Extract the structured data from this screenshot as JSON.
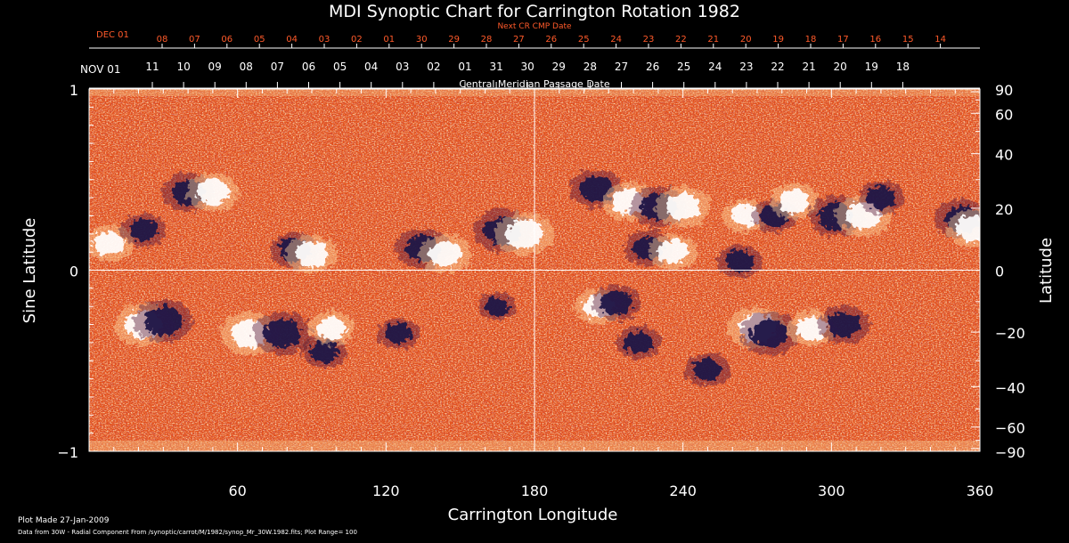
{
  "chart_data": {
    "type": "heatmap",
    "title": "MDI Synoptic Chart for Carrington Rotation 1982",
    "xlabel": "Carrington Longitude",
    "ylabel_left": "Sine Latitude",
    "ylabel_right": "Latitude",
    "xlim": [
      0,
      360
    ],
    "ylim": [
      -1,
      1
    ],
    "x_ticks": [
      60,
      120,
      180,
      240,
      300,
      360
    ],
    "y_ticks_left": [
      {
        "value": 1,
        "label": "1"
      },
      {
        "value": 0,
        "label": "0"
      },
      {
        "value": -1,
        "label": "−1"
      }
    ],
    "y_ticks_right": [
      {
        "value": 90,
        "label": "90"
      },
      {
        "value": 60,
        "label": "60"
      },
      {
        "value": 40,
        "label": "40"
      },
      {
        "value": 20,
        "label": "20"
      },
      {
        "value": 0,
        "label": "0"
      },
      {
        "value": -20,
        "label": "−20"
      },
      {
        "value": -40,
        "label": "−40"
      },
      {
        "value": -60,
        "label": "−60"
      },
      {
        "value": -90,
        "label": "−90"
      }
    ],
    "cmp_axis": {
      "title": "Central Meridian Passage Date",
      "month_label": "NOV 01",
      "dates": [
        "11",
        "10",
        "09",
        "08",
        "07",
        "06",
        "05",
        "04",
        "03",
        "02",
        "01",
        "31",
        "30",
        "29",
        "28",
        "27",
        "26",
        "25",
        "24",
        "23",
        "22",
        "21",
        "20",
        "19",
        "18"
      ]
    },
    "next_cmp_axis": {
      "title": "Next CR CMP Date",
      "month_label": "DEC 01",
      "dates": [
        "08",
        "07",
        "06",
        "05",
        "04",
        "03",
        "02",
        "01",
        "30",
        "29",
        "28",
        "27",
        "26",
        "25",
        "24",
        "23",
        "22",
        "21",
        "20",
        "19",
        "18",
        "17",
        "16",
        "15",
        "14"
      ]
    },
    "crosshair": {
      "longitude": 180,
      "sine_latitude": 0
    },
    "plot_range": 100,
    "colors": {
      "background_field": "#e8531a",
      "positive_polarity": "#ffffff",
      "negative_polarity": "#1c1245",
      "next_cmp_text": "#ff5a2a",
      "axes": "#ffffff"
    },
    "active_regions": [
      {
        "longitude": 8,
        "sine_latitude": 0.15,
        "polarity": "positive",
        "strength": 0.6
      },
      {
        "longitude": 22,
        "sine_latitude": 0.22,
        "polarity": "negative",
        "strength": 0.5
      },
      {
        "longitude": 40,
        "sine_latitude": 0.43,
        "polarity": "negative",
        "strength": 0.7
      },
      {
        "longitude": 50,
        "sine_latitude": 0.43,
        "polarity": "positive",
        "strength": 0.7
      },
      {
        "longitude": 83,
        "sine_latitude": 0.11,
        "polarity": "negative",
        "strength": 0.6
      },
      {
        "longitude": 90,
        "sine_latitude": 0.09,
        "polarity": "positive",
        "strength": 0.7
      },
      {
        "longitude": 135,
        "sine_latitude": 0.12,
        "polarity": "negative",
        "strength": 0.8
      },
      {
        "longitude": 144,
        "sine_latitude": 0.09,
        "polarity": "positive",
        "strength": 0.7
      },
      {
        "longitude": 167,
        "sine_latitude": 0.22,
        "polarity": "negative",
        "strength": 0.9
      },
      {
        "longitude": 176,
        "sine_latitude": 0.2,
        "polarity": "positive",
        "strength": 0.9
      },
      {
        "longitude": 205,
        "sine_latitude": 0.45,
        "polarity": "negative",
        "strength": 0.7
      },
      {
        "longitude": 218,
        "sine_latitude": 0.38,
        "polarity": "positive",
        "strength": 0.7
      },
      {
        "longitude": 230,
        "sine_latitude": 0.35,
        "polarity": "negative",
        "strength": 0.8
      },
      {
        "longitude": 240,
        "sine_latitude": 0.35,
        "polarity": "positive",
        "strength": 0.8
      },
      {
        "longitude": 226,
        "sine_latitude": 0.12,
        "polarity": "negative",
        "strength": 0.6
      },
      {
        "longitude": 236,
        "sine_latitude": 0.1,
        "polarity": "positive",
        "strength": 0.6
      },
      {
        "longitude": 265,
        "sine_latitude": 0.3,
        "polarity": "positive",
        "strength": 0.5
      },
      {
        "longitude": 277,
        "sine_latitude": 0.3,
        "polarity": "negative",
        "strength": 0.5
      },
      {
        "longitude": 285,
        "sine_latitude": 0.38,
        "polarity": "positive",
        "strength": 0.6
      },
      {
        "longitude": 302,
        "sine_latitude": 0.3,
        "polarity": "negative",
        "strength": 0.8
      },
      {
        "longitude": 313,
        "sine_latitude": 0.3,
        "polarity": "positive",
        "strength": 0.8
      },
      {
        "longitude": 320,
        "sine_latitude": 0.4,
        "polarity": "negative",
        "strength": 0.5
      },
      {
        "longitude": 353,
        "sine_latitude": 0.28,
        "polarity": "negative",
        "strength": 0.8
      },
      {
        "longitude": 357,
        "sine_latitude": 0.23,
        "polarity": "positive",
        "strength": 0.7
      },
      {
        "longitude": 263,
        "sine_latitude": 0.05,
        "polarity": "negative",
        "strength": 0.5
      },
      {
        "longitude": 22,
        "sine_latitude": -0.3,
        "polarity": "positive",
        "strength": 0.9
      },
      {
        "longitude": 30,
        "sine_latitude": -0.28,
        "polarity": "negative",
        "strength": 0.9
      },
      {
        "longitude": 65,
        "sine_latitude": -0.35,
        "polarity": "positive",
        "strength": 0.9
      },
      {
        "longitude": 78,
        "sine_latitude": -0.35,
        "polarity": "negative",
        "strength": 0.9
      },
      {
        "longitude": 95,
        "sine_latitude": -0.45,
        "polarity": "negative",
        "strength": 0.5
      },
      {
        "longitude": 98,
        "sine_latitude": -0.32,
        "polarity": "positive",
        "strength": 0.5
      },
      {
        "longitude": 125,
        "sine_latitude": -0.35,
        "polarity": "negative",
        "strength": 0.4
      },
      {
        "longitude": 206,
        "sine_latitude": -0.2,
        "polarity": "positive",
        "strength": 0.6
      },
      {
        "longitude": 213,
        "sine_latitude": -0.18,
        "polarity": "negative",
        "strength": 0.6
      },
      {
        "longitude": 222,
        "sine_latitude": -0.4,
        "polarity": "negative",
        "strength": 0.5
      },
      {
        "longitude": 270,
        "sine_latitude": -0.32,
        "polarity": "positive",
        "strength": 0.9
      },
      {
        "longitude": 275,
        "sine_latitude": -0.35,
        "polarity": "negative",
        "strength": 0.9
      },
      {
        "longitude": 292,
        "sine_latitude": -0.32,
        "polarity": "positive",
        "strength": 0.6
      },
      {
        "longitude": 305,
        "sine_latitude": -0.3,
        "polarity": "negative",
        "strength": 0.7
      },
      {
        "longitude": 250,
        "sine_latitude": -0.55,
        "polarity": "negative",
        "strength": 0.5
      },
      {
        "longitude": 165,
        "sine_latitude": -0.2,
        "polarity": "negative",
        "strength": 0.3
      }
    ]
  },
  "footer": {
    "plot_made": "Plot Made 27-Jan-2009",
    "data_source": "Data from 30W - Radial Component From /synoptic/carrot/M/1982/synop_Mr_30W.1982.fits; Plot Range= 100"
  }
}
